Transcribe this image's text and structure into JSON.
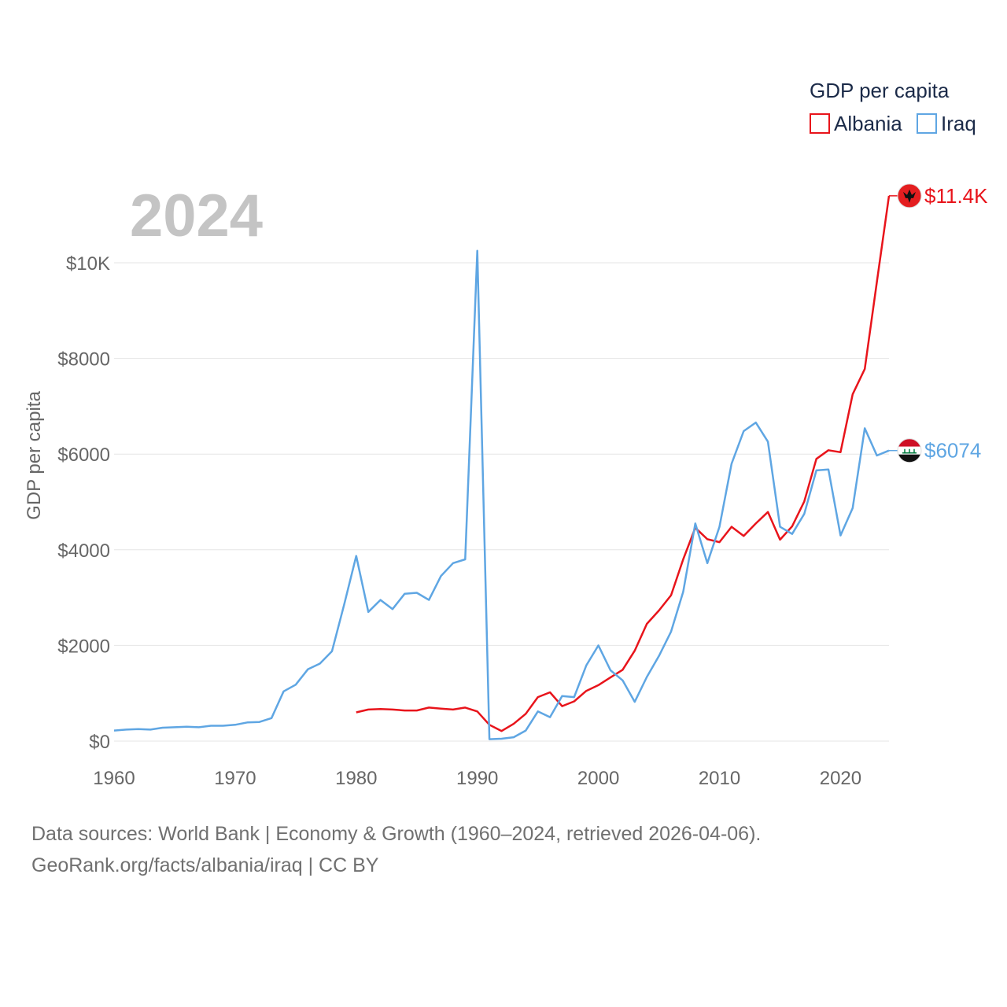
{
  "footer": {
    "sources": "Data sources: World Bank | Economy & Growth (1960–2024, retrieved 2026-04-06).",
    "credit": "GeoRank.org/facts/albania/iraq | CC BY"
  },
  "chart_data": {
    "type": "line",
    "title": "2024",
    "ylabel": "GDP per capita",
    "xlabel": "",
    "xlim": [
      1960,
      2024
    ],
    "ylim": [
      0,
      10000
    ],
    "y_ticks": [
      {
        "value": 0,
        "label": "$0"
      },
      {
        "value": 2000,
        "label": "$2000"
      },
      {
        "value": 4000,
        "label": "$4000"
      },
      {
        "value": 6000,
        "label": "$6000"
      },
      {
        "value": 8000,
        "label": "$8000"
      },
      {
        "value": 10000,
        "label": "$10K"
      }
    ],
    "x_ticks": [
      {
        "value": 1960,
        "label": "1960"
      },
      {
        "value": 1970,
        "label": "1970"
      },
      {
        "value": 1980,
        "label": "1980"
      },
      {
        "value": 1990,
        "label": "1990"
      },
      {
        "value": 2000,
        "label": "2000"
      },
      {
        "value": 2010,
        "label": "2010"
      },
      {
        "value": 2020,
        "label": "2020"
      }
    ],
    "legend": {
      "title": "GDP per capita",
      "position": "top-right"
    },
    "series": [
      {
        "name": "Albania",
        "color": "#e8141b",
        "end_label": "$11.4K",
        "flag_icon": "albania-flag-icon",
        "x": [
          1980,
          1981,
          1982,
          1983,
          1984,
          1985,
          1986,
          1987,
          1988,
          1989,
          1990,
          1991,
          1992,
          1993,
          1994,
          1995,
          1996,
          1997,
          1998,
          1999,
          2000,
          2001,
          2002,
          2003,
          2004,
          2005,
          2006,
          2007,
          2008,
          2009,
          2010,
          2011,
          2012,
          2013,
          2014,
          2015,
          2016,
          2017,
          2018,
          2019,
          2020,
          2021,
          2022,
          2023,
          2024
        ],
        "y": [
          600,
          660,
          670,
          660,
          640,
          640,
          700,
          680,
          660,
          700,
          620,
          340,
          210,
          360,
          570,
          920,
          1020,
          730,
          830,
          1050,
          1170,
          1330,
          1490,
          1890,
          2450,
          2730,
          3050,
          3800,
          4460,
          4220,
          4160,
          4480,
          4290,
          4550,
          4790,
          4210,
          4490,
          5010,
          5900,
          6080,
          6040,
          7250,
          7780,
          9600,
          11400
        ]
      },
      {
        "name": "Iraq",
        "color": "#5fa6e3",
        "end_label": "$6074",
        "flag_icon": "iraq-flag-icon",
        "x": [
          1960,
          1961,
          1962,
          1963,
          1964,
          1965,
          1966,
          1967,
          1968,
          1969,
          1970,
          1971,
          1972,
          1973,
          1974,
          1975,
          1976,
          1977,
          1978,
          1979,
          1980,
          1981,
          1982,
          1983,
          1984,
          1985,
          1986,
          1987,
          1988,
          1989,
          1990,
          1991,
          1992,
          1993,
          1994,
          1995,
          1996,
          1997,
          1998,
          1999,
          2000,
          2001,
          2002,
          2003,
          2004,
          2005,
          2006,
          2007,
          2008,
          2009,
          2010,
          2011,
          2012,
          2013,
          2014,
          2015,
          2016,
          2017,
          2018,
          2019,
          2020,
          2021,
          2022,
          2023,
          2024
        ],
        "y": [
          220,
          240,
          250,
          240,
          280,
          290,
          300,
          290,
          320,
          320,
          340,
          390,
          400,
          480,
          1040,
          1180,
          1500,
          1620,
          1880,
          2850,
          3870,
          2700,
          2950,
          2760,
          3080,
          3100,
          2950,
          3450,
          3720,
          3800,
          10250,
          40,
          50,
          80,
          220,
          620,
          500,
          940,
          920,
          1580,
          2000,
          1480,
          1270,
          820,
          1340,
          1780,
          2290,
          3120,
          4550,
          3720,
          4480,
          5800,
          6480,
          6660,
          6260,
          4480,
          4330,
          4750,
          5660,
          5680,
          4300,
          4870,
          6540,
          5970,
          6074
        ]
      }
    ]
  }
}
